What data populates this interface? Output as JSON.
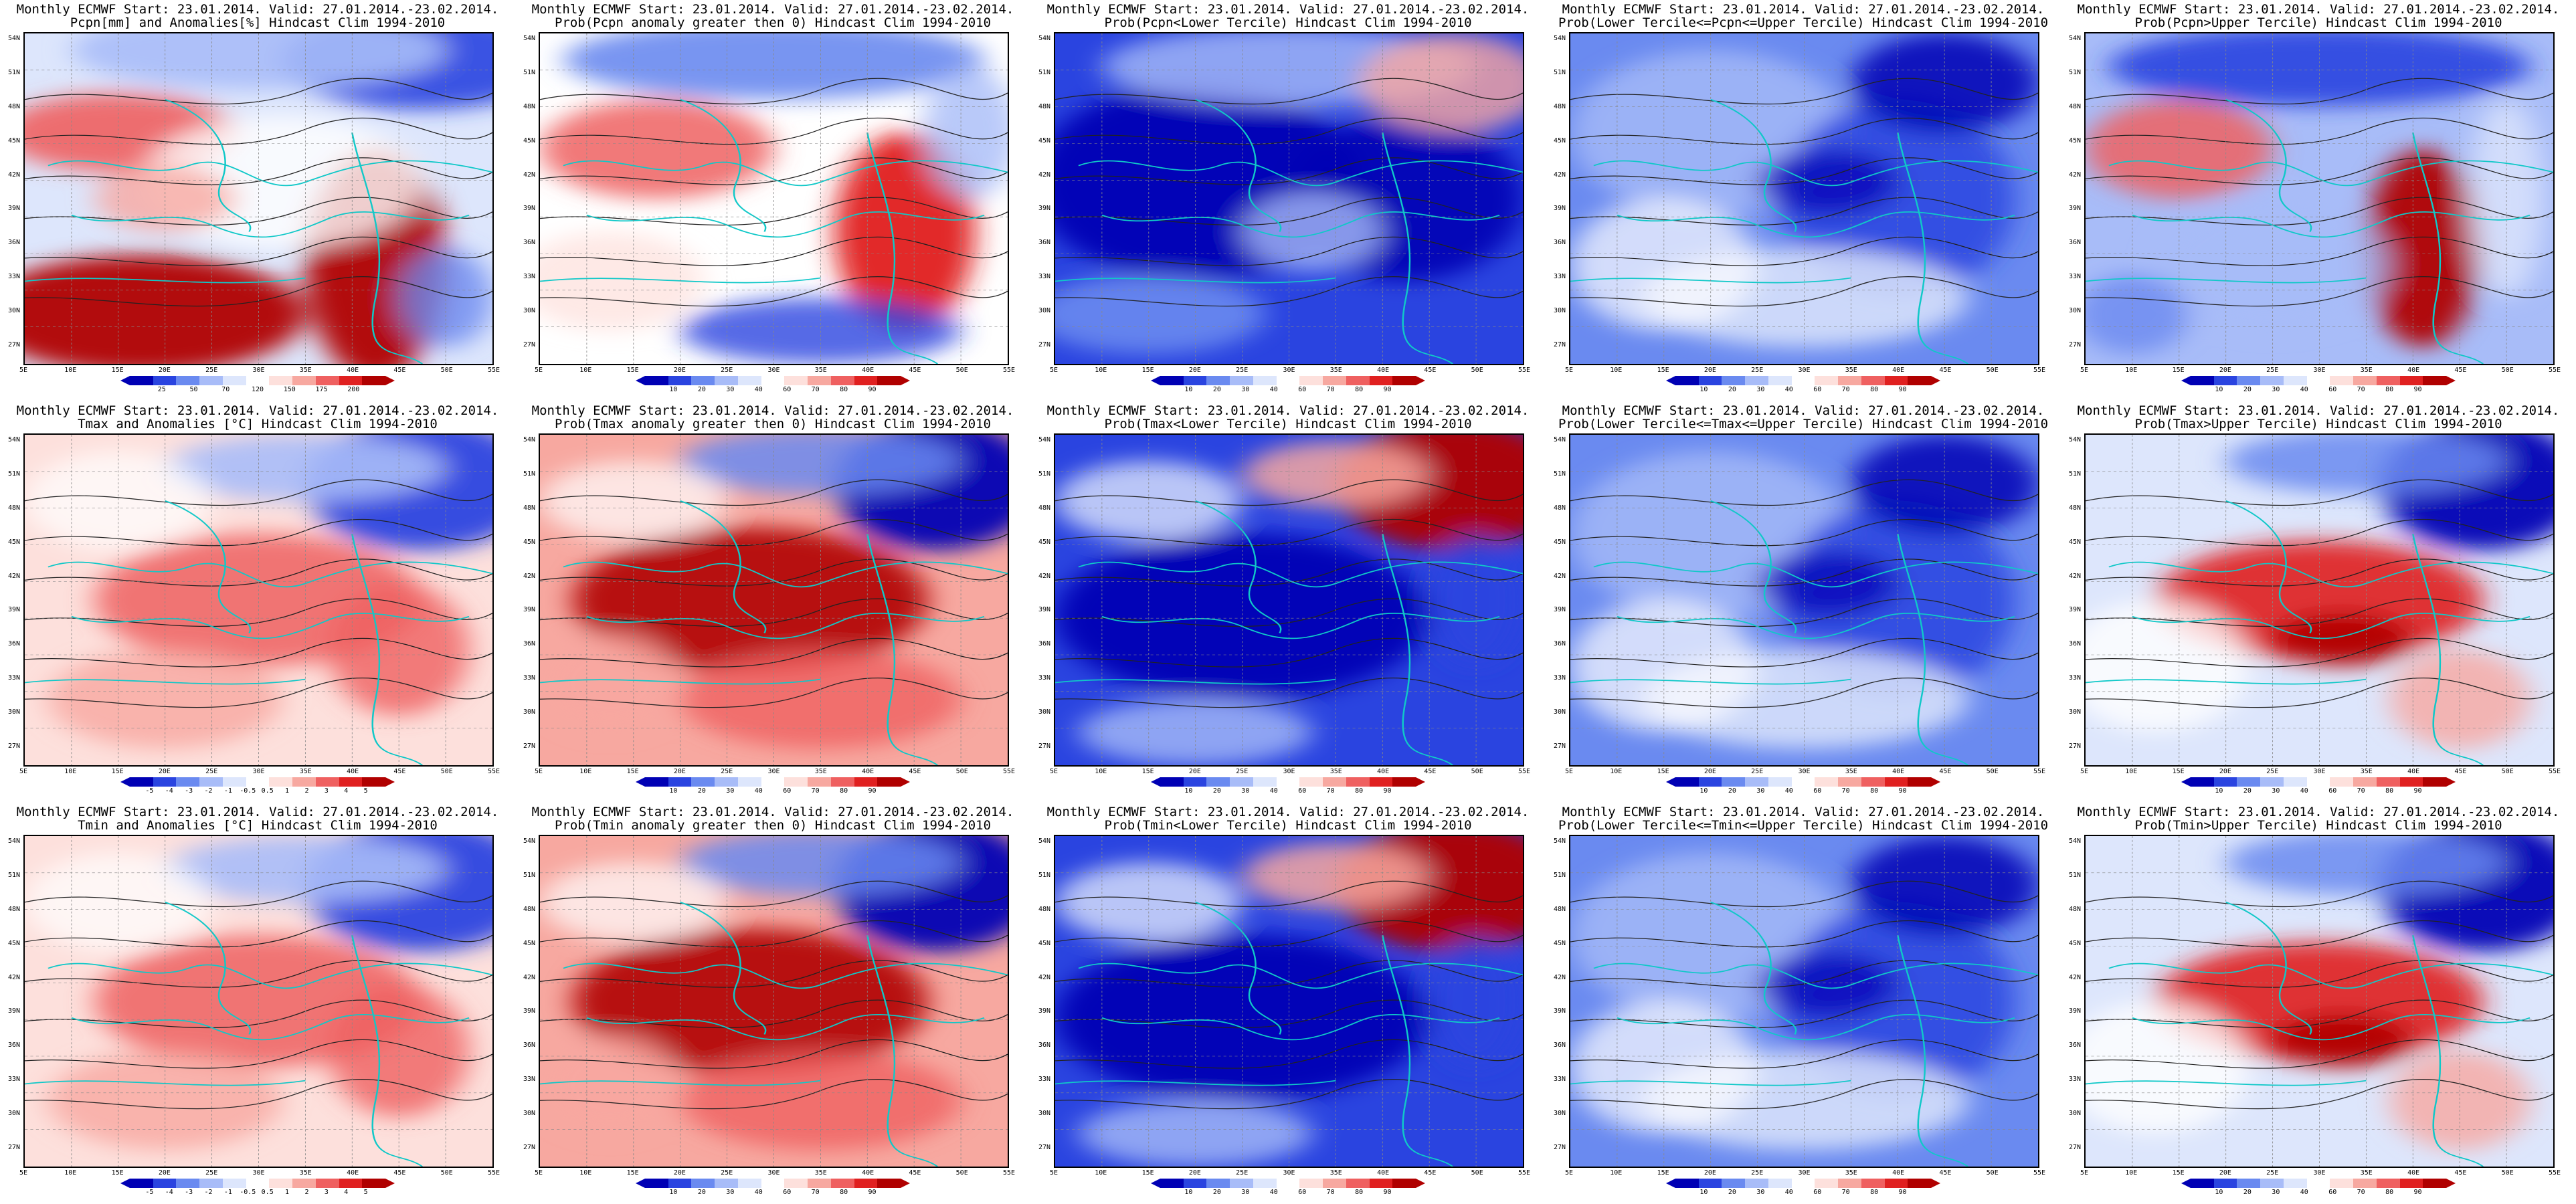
{
  "lat_labels": [
    "54N",
    "51N",
    "48N",
    "45N",
    "42N",
    "39N",
    "36N",
    "33N",
    "30N",
    "27N"
  ],
  "lon_labels": [
    "5E",
    "10E",
    "15E",
    "20E",
    "25E",
    "30E",
    "35E",
    "40E",
    "45E",
    "50E",
    "55E"
  ],
  "colorbars": {
    "pcpn_anom": {
      "ticks": [
        "25",
        "50",
        "70",
        "120",
        "150",
        "175",
        "200"
      ],
      "colors": [
        "#0000b4",
        "#2a44e0",
        "#6a8af0",
        "#a8bcf8",
        "#dde6fc",
        "#ffffff",
        "#fde0dc",
        "#f7a8a0",
        "#ef6060",
        "#e02020",
        "#b00000"
      ]
    },
    "prob": {
      "ticks": [
        "10",
        "20",
        "30",
        "40",
        "60",
        "70",
        "80",
        "90"
      ],
      "colors": [
        "#0000b4",
        "#2a44e0",
        "#6a8af0",
        "#a8bcf8",
        "#dde6fc",
        "#ffffff",
        "#fde0dc",
        "#f7a8a0",
        "#ef6060",
        "#e02020",
        "#b00000"
      ]
    },
    "temp_anom": {
      "ticks": [
        "-5",
        "-4",
        "-3",
        "-2",
        "-1",
        "-0.5",
        "0.5",
        "1",
        "2",
        "3",
        "4",
        "5"
      ],
      "colors": [
        "#0000b4",
        "#2a44e0",
        "#6a8af0",
        "#a8bcf8",
        "#dde6fc",
        "#ffffff",
        "#fde0dc",
        "#f7a8a0",
        "#ef6060",
        "#e02020",
        "#b00000"
      ]
    }
  },
  "panels": [
    {
      "line1": "Monthly ECMWF Start: 23.01.2014. Valid: 27.01.2014.-23.02.2014.",
      "line2": "Pcpn[mm] and Anomalies[%] Hindcast Clim 1994-2010",
      "cbar": "pcpn_anom",
      "scheme": "pcpn_anom"
    },
    {
      "line1": "Monthly ECMWF Start: 23.01.2014. Valid: 27.01.2014.-23.02.2014.",
      "line2": "Prob(Pcpn anomaly greater then 0) Hindcast Clim 1994-2010",
      "cbar": "prob",
      "scheme": "pcpn_prob"
    },
    {
      "line1": "Monthly ECMWF Start: 23.01.2014. Valid: 27.01.2014.-23.02.2014.",
      "line2": "Prob(Pcpn<Lower Tercile) Hindcast Clim 1994-2010",
      "cbar": "prob",
      "scheme": "blue_heavy"
    },
    {
      "line1": "Monthly ECMWF Start: 23.01.2014. Valid: 27.01.2014.-23.02.2014.",
      "line2": "Prob(Lower Tercile<=Pcpn<=Upper Tercile) Hindcast Clim 1994-2010",
      "cbar": "prob",
      "scheme": "blue_mid"
    },
    {
      "line1": "Monthly ECMWF Start: 23.01.2014. Valid: 27.01.2014.-23.02.2014.",
      "line2": "Prob(Pcpn>Upper Tercile) Hindcast Clim 1994-2010",
      "cbar": "prob",
      "scheme": "pcpn_upper"
    },
    {
      "line1": "Monthly ECMWF Start: 23.01.2014. Valid: 27.01.2014.-23.02.2014.",
      "line2": "Tmax and Anomalies [°C] Hindcast Clim 1994-2010",
      "cbar": "temp_anom",
      "scheme": "temp_anom"
    },
    {
      "line1": "Monthly ECMWF Start: 23.01.2014. Valid: 27.01.2014.-23.02.2014.",
      "line2": "Prob(Tmax anomaly greater then 0) Hindcast Clim 1994-2010",
      "cbar": "prob",
      "scheme": "temp_prob"
    },
    {
      "line1": "Monthly ECMWF Start: 23.01.2014. Valid: 27.01.2014.-23.02.2014.",
      "line2": "Prob(Tmax<Lower Tercile) Hindcast Clim 1994-2010",
      "cbar": "prob",
      "scheme": "temp_lower"
    },
    {
      "line1": "Monthly ECMWF Start: 23.01.2014. Valid: 27.01.2014.-23.02.2014.",
      "line2": "Prob(Lower Tercile<=Tmax<=Upper Tercile) Hindcast Clim 1994-2010",
      "cbar": "prob",
      "scheme": "blue_mid"
    },
    {
      "line1": "Monthly ECMWF Start: 23.01.2014. Valid: 27.01.2014.-23.02.2014.",
      "line2": "Prob(Tmax>Upper Tercile) Hindcast Clim 1994-2010",
      "cbar": "prob",
      "scheme": "temp_upper"
    },
    {
      "line1": "Monthly ECMWF Start: 23.01.2014. Valid: 27.01.2014.-23.02.2014.",
      "line2": "Tmin and Anomalies [°C] Hindcast Clim 1994-2010",
      "cbar": "temp_anom",
      "scheme": "temp_anom"
    },
    {
      "line1": "Monthly ECMWF Start: 23.01.2014. Valid: 27.01.2014.-23.02.2014.",
      "line2": "Prob(Tmin anomaly greater then 0) Hindcast Clim 1994-2010",
      "cbar": "prob",
      "scheme": "temp_prob"
    },
    {
      "line1": "Monthly ECMWF Start: 23.01.2014. Valid: 27.01.2014.-23.02.2014.",
      "line2": "Prob(Tmin<Lower Tercile) Hindcast Clim 1994-2010",
      "cbar": "prob",
      "scheme": "temp_lower"
    },
    {
      "line1": "Monthly ECMWF Start: 23.01.2014. Valid: 27.01.2014.-23.02.2014.",
      "line2": "Prob(Lower Tercile<=Tmin<=Upper Tercile) Hindcast Clim 1994-2010",
      "cbar": "prob",
      "scheme": "blue_mid"
    },
    {
      "line1": "Monthly ECMWF Start: 23.01.2014. Valid: 27.01.2014.-23.02.2014.",
      "line2": "Prob(Tmin>Upper Tercile) Hindcast Clim 1994-2010",
      "cbar": "prob",
      "scheme": "temp_upper"
    }
  ]
}
